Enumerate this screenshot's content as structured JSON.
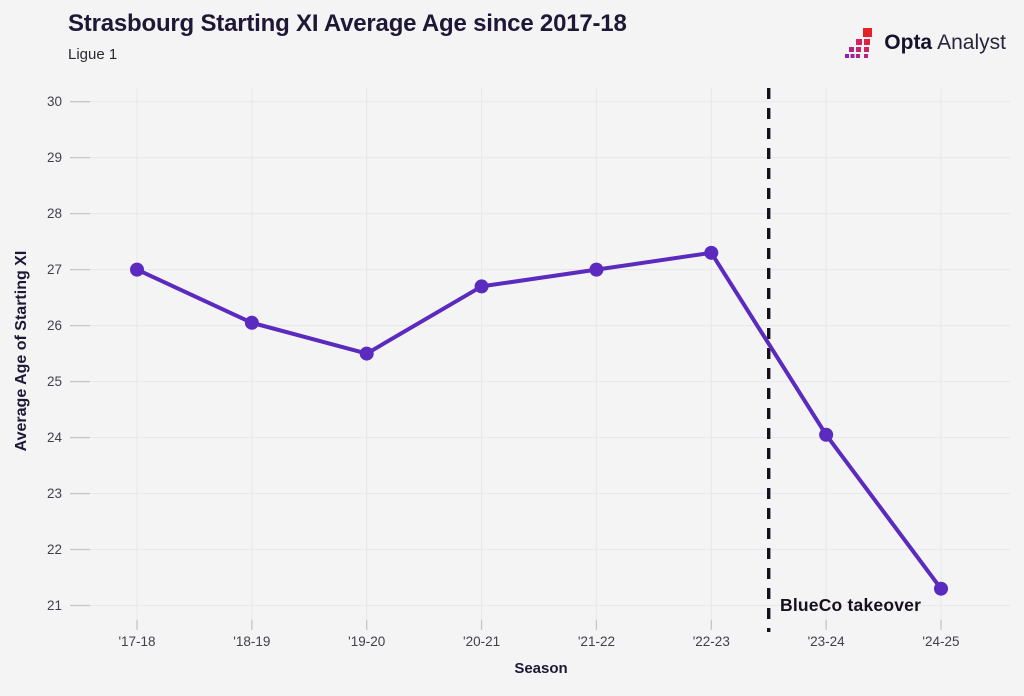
{
  "header": {
    "title": "Strasbourg Starting XI Average Age since 2017-18",
    "subtitle": "Ligue 1"
  },
  "logo": {
    "brand_bold": "Opta",
    "brand_light": "Analyst"
  },
  "chart_data": {
    "type": "line",
    "title": "Strasbourg Starting XI Average Age since 2017-18",
    "subtitle": "Ligue 1",
    "xlabel": "Season",
    "ylabel": "Average Age of Starting XI",
    "categories": [
      "'17-18",
      "'18-19",
      "'19-20",
      "'20-21",
      "'21-22",
      "'22-23",
      "'23-24",
      "'24-25"
    ],
    "values": [
      27.0,
      26.05,
      25.5,
      26.7,
      27.0,
      27.3,
      24.05,
      21.3
    ],
    "yticks": [
      21,
      22,
      23,
      24,
      25,
      26,
      27,
      28,
      29,
      30
    ],
    "ylim": [
      20.74,
      30.24
    ],
    "grid": true,
    "legend": "none",
    "line_color": "#5b2abe",
    "marker": "circle",
    "annotation": {
      "label": "BlueCo takeover",
      "x_between": [
        "'22-23",
        "'23-24"
      ],
      "line_style": "dashed",
      "line_color": "#14101d"
    },
    "colors": {
      "background": "#f5f4f5",
      "gridline": "#e9e8eb",
      "tick": "#c6c5cb",
      "tick_text": "#413f4a",
      "heading_text": "#1e1836"
    }
  }
}
